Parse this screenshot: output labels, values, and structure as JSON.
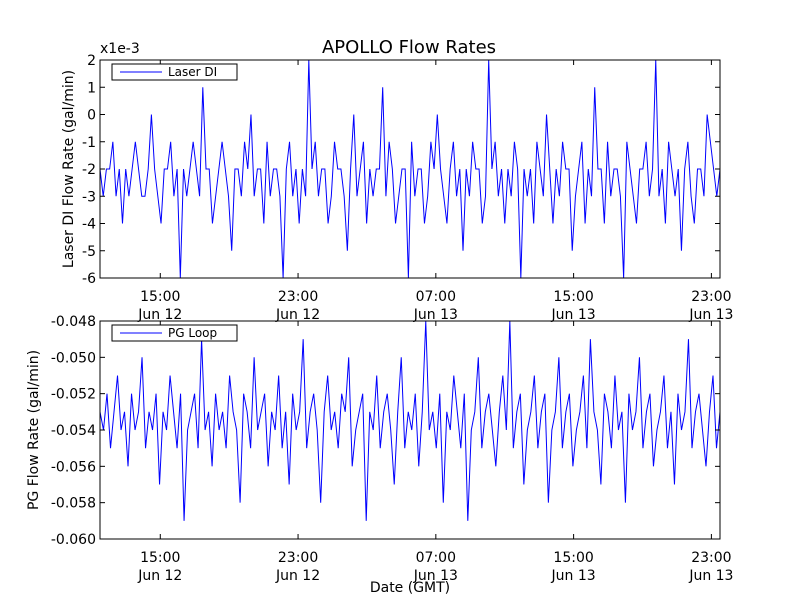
{
  "chart_data": [
    {
      "type": "line",
      "title": "APOLLO Flow Rates",
      "offset_text": "x1e-3",
      "xlabel": "",
      "ylabel": "Laser DI Flow Rate (gal/min)",
      "ylim": [
        -6,
        2
      ],
      "yticks": [
        "2",
        "1",
        "0",
        "-1",
        "-2",
        "-3",
        "-4",
        "-5",
        "-6"
      ],
      "ytick_values": [
        2,
        1,
        0,
        -1,
        -2,
        -3,
        -4,
        -5,
        -6
      ],
      "xlim": [
        "2014-06-12 11:30",
        "2014-06-13 23:30"
      ],
      "xticks": [
        {
          "time": "15:00",
          "date": "Jun 12",
          "x": "2014-06-12 15:00"
        },
        {
          "time": "23:00",
          "date": "Jun 12",
          "x": "2014-06-12 23:00"
        },
        {
          "time": "07:00",
          "date": "Jun 13",
          "x": "2014-06-13 07:00"
        },
        {
          "time": "15:00",
          "date": "Jun 13",
          "x": "2014-06-13 15:00"
        },
        {
          "time": "23:00",
          "date": "Jun 13",
          "x": "2014-06-13 23:00"
        }
      ],
      "legend": {
        "placement": "top-left"
      },
      "grid": false,
      "series": [
        {
          "name": "Laser DI",
          "color": "#0000ff",
          "typical_range": [
            -3,
            -2
          ],
          "values": [
            -2,
            -3,
            -2,
            -2,
            -1,
            -3,
            -2,
            -4,
            -2,
            -3,
            -2,
            -1,
            -2,
            -3,
            -3,
            -2,
            0,
            -2,
            -3,
            -4,
            -2,
            -2,
            -1,
            -3,
            -2,
            -6,
            -2,
            -3,
            -2,
            -1,
            -2,
            -3,
            1,
            -2,
            -2,
            -4,
            -3,
            -2,
            -1,
            -2,
            -3,
            -5,
            -2,
            -2,
            -3,
            -1,
            -2,
            0,
            -3,
            -2,
            -2,
            -4,
            -1,
            -3,
            -2,
            -2,
            -3,
            -6,
            -2,
            -1,
            -3,
            -2,
            -4,
            -2,
            -3,
            2,
            -2,
            -1,
            -3,
            -2,
            -2,
            -4,
            -3,
            -1,
            -2,
            -2,
            -3,
            -5,
            -2,
            0,
            -3,
            -2,
            -1,
            -4,
            -2,
            -3,
            -2,
            -2,
            1,
            -3,
            -1,
            -2,
            -4,
            -3,
            -2,
            -2,
            -6,
            -1,
            -3,
            -2,
            -2,
            -4,
            -3,
            -1,
            -2,
            0,
            -2,
            -3,
            -4,
            -2,
            -1,
            -3,
            -2,
            -5,
            -2,
            -3,
            -1,
            -2,
            -2,
            -4,
            -3,
            2,
            -2,
            -1,
            -3,
            -2,
            -4,
            -2,
            -3,
            -1,
            -2,
            -6,
            -2,
            -3,
            -2,
            -4,
            -1,
            -2,
            -3,
            0,
            -2,
            -4,
            -2,
            -3,
            -1,
            -2,
            -2,
            -5,
            -3,
            -2,
            -1,
            -4,
            -2,
            -3,
            1,
            -2,
            -2,
            -4,
            -1,
            -3,
            -2,
            -2,
            -3,
            -6,
            -1,
            -2,
            -3,
            -4,
            -2,
            -2,
            -1,
            -3,
            -2,
            2,
            -3,
            -2,
            -4,
            -1,
            -2,
            -3,
            -2,
            -5,
            -2,
            -1,
            -3,
            -4,
            -2,
            -2,
            -3,
            0,
            -1,
            -2,
            -3,
            -2
          ]
        }
      ]
    },
    {
      "type": "line",
      "title": "",
      "xlabel": "Date (GMT)",
      "ylabel": "PG Flow Rate (gal/min)",
      "ylim": [
        -0.06,
        -0.048
      ],
      "yticks": [
        "-0.048",
        "-0.050",
        "-0.052",
        "-0.054",
        "-0.056",
        "-0.058",
        "-0.060"
      ],
      "ytick_values": [
        -0.048,
        -0.05,
        -0.052,
        -0.054,
        -0.056,
        -0.058,
        -0.06
      ],
      "xlim": [
        "2014-06-12 11:30",
        "2014-06-13 23:30"
      ],
      "xticks": [
        {
          "time": "15:00",
          "date": "Jun 12",
          "x": "2014-06-12 15:00"
        },
        {
          "time": "23:00",
          "date": "Jun 12",
          "x": "2014-06-12 23:00"
        },
        {
          "time": "07:00",
          "date": "Jun 13",
          "x": "2014-06-13 07:00"
        },
        {
          "time": "15:00",
          "date": "Jun 13",
          "x": "2014-06-13 15:00"
        },
        {
          "time": "23:00",
          "date": "Jun 13",
          "x": "2014-06-13 23:00"
        }
      ],
      "legend": {
        "placement": "top-left"
      },
      "grid": false,
      "series": [
        {
          "name": "PG Loop",
          "color": "#0000ff",
          "typical_range": [
            -0.055,
            -0.052
          ],
          "values": [
            -0.053,
            -0.054,
            -0.052,
            -0.055,
            -0.053,
            -0.051,
            -0.054,
            -0.053,
            -0.056,
            -0.052,
            -0.054,
            -0.053,
            -0.05,
            -0.055,
            -0.053,
            -0.054,
            -0.052,
            -0.057,
            -0.053,
            -0.054,
            -0.051,
            -0.053,
            -0.055,
            -0.052,
            -0.059,
            -0.054,
            -0.053,
            -0.052,
            -0.055,
            -0.049,
            -0.054,
            -0.053,
            -0.056,
            -0.052,
            -0.054,
            -0.053,
            -0.055,
            -0.051,
            -0.053,
            -0.054,
            -0.058,
            -0.052,
            -0.053,
            -0.055,
            -0.05,
            -0.054,
            -0.053,
            -0.052,
            -0.056,
            -0.053,
            -0.054,
            -0.051,
            -0.055,
            -0.053,
            -0.057,
            -0.052,
            -0.054,
            -0.053,
            -0.049,
            -0.055,
            -0.053,
            -0.052,
            -0.054,
            -0.058,
            -0.053,
            -0.051,
            -0.054,
            -0.053,
            -0.055,
            -0.052,
            -0.053,
            -0.05,
            -0.056,
            -0.054,
            -0.053,
            -0.052,
            -0.059,
            -0.053,
            -0.054,
            -0.051,
            -0.055,
            -0.053,
            -0.052,
            -0.054,
            -0.057,
            -0.053,
            -0.05,
            -0.055,
            -0.053,
            -0.054,
            -0.052,
            -0.056,
            -0.053,
            -0.048,
            -0.054,
            -0.053,
            -0.055,
            -0.052,
            -0.058,
            -0.053,
            -0.054,
            -0.051,
            -0.053,
            -0.055,
            -0.052,
            -0.059,
            -0.054,
            -0.053,
            -0.05,
            -0.055,
            -0.053,
            -0.052,
            -0.054,
            -0.056,
            -0.053,
            -0.051,
            -0.054,
            -0.048,
            -0.055,
            -0.053,
            -0.052,
            -0.057,
            -0.054,
            -0.053,
            -0.051,
            -0.055,
            -0.053,
            -0.052,
            -0.058,
            -0.054,
            -0.053,
            -0.05,
            -0.055,
            -0.053,
            -0.052,
            -0.056,
            -0.054,
            -0.053,
            -0.051,
            -0.055,
            -0.049,
            -0.053,
            -0.054,
            -0.057,
            -0.052,
            -0.053,
            -0.055,
            -0.051,
            -0.054,
            -0.053,
            -0.058,
            -0.052,
            -0.054,
            -0.053,
            -0.05,
            -0.055,
            -0.053,
            -0.052,
            -0.056,
            -0.054,
            -0.053,
            -0.051,
            -0.055,
            -0.053,
            -0.057,
            -0.052,
            -0.054,
            -0.053,
            -0.049,
            -0.055,
            -0.053,
            -0.052,
            -0.054,
            -0.056,
            -0.053,
            -0.051,
            -0.055,
            -0.053
          ]
        }
      ]
    }
  ]
}
